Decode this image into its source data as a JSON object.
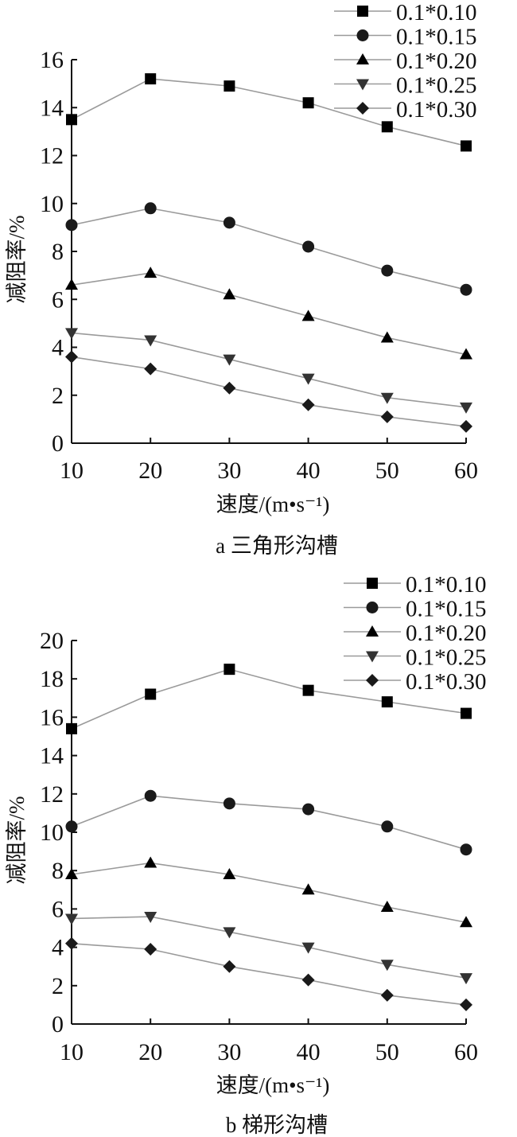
{
  "chart_data": [
    {
      "type": "line",
      "caption": "a 三角形沟槽",
      "xlabel": "速度/(m•s⁻¹)",
      "ylabel": "减阻率/%",
      "x": [
        10,
        20,
        30,
        40,
        50,
        60
      ],
      "x_ticks": [
        "10",
        "20",
        "30",
        "40",
        "50",
        "60"
      ],
      "y_ticks": [
        "0",
        "2",
        "4",
        "6",
        "8",
        "10",
        "12",
        "14",
        "16"
      ],
      "ylim": [
        0,
        16
      ],
      "xlim": [
        10,
        60
      ],
      "grid": false,
      "legend_position": "top-right",
      "series": [
        {
          "name": "0.1*0.10",
          "marker": "square",
          "values": [
            13.5,
            15.2,
            14.9,
            14.2,
            13.2,
            12.4
          ]
        },
        {
          "name": "0.1*0.15",
          "marker": "circle",
          "values": [
            9.1,
            9.8,
            9.2,
            8.2,
            7.2,
            6.4
          ]
        },
        {
          "name": "0.1*0.20",
          "marker": "triangle-up",
          "values": [
            6.6,
            7.1,
            6.2,
            5.3,
            4.4,
            3.7
          ]
        },
        {
          "name": "0.1*0.25",
          "marker": "triangle-down",
          "values": [
            4.6,
            4.3,
            3.5,
            2.7,
            1.9,
            1.5
          ]
        },
        {
          "name": "0.1*0.30",
          "marker": "diamond",
          "values": [
            3.6,
            3.1,
            2.3,
            1.6,
            1.1,
            0.7
          ]
        }
      ]
    },
    {
      "type": "line",
      "caption": "b 梯形沟槽",
      "xlabel": "速度/(m•s⁻¹)",
      "ylabel": "减阻率/%",
      "x": [
        10,
        20,
        30,
        40,
        50,
        60
      ],
      "x_ticks": [
        "10",
        "20",
        "30",
        "40",
        "50",
        "60"
      ],
      "y_ticks": [
        "0",
        "2",
        "4",
        "6",
        "8",
        "10",
        "12",
        "14",
        "16",
        "18",
        "20"
      ],
      "ylim": [
        0,
        20
      ],
      "xlim": [
        10,
        60
      ],
      "grid": false,
      "legend_position": "top-right",
      "series": [
        {
          "name": "0.1*0.10",
          "marker": "square",
          "values": [
            15.4,
            17.2,
            18.5,
            17.4,
            16.8,
            16.2
          ]
        },
        {
          "name": "0.1*0.15",
          "marker": "circle",
          "values": [
            10.3,
            11.9,
            11.5,
            11.2,
            10.3,
            9.1
          ]
        },
        {
          "name": "0.1*0.20",
          "marker": "triangle-up",
          "values": [
            7.8,
            8.4,
            7.8,
            7.0,
            6.1,
            5.3
          ]
        },
        {
          "name": "0.1*0.25",
          "marker": "triangle-down",
          "values": [
            5.5,
            5.6,
            4.8,
            4.0,
            3.1,
            2.4
          ]
        },
        {
          "name": "0.1*0.30",
          "marker": "diamond",
          "values": [
            4.2,
            3.9,
            3.0,
            2.3,
            1.5,
            1.0
          ]
        }
      ]
    }
  ]
}
